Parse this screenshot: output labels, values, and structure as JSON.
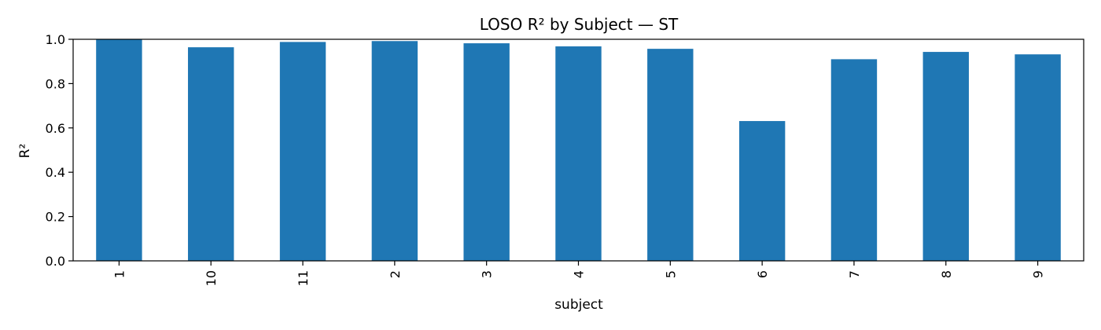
{
  "chart_data": {
    "type": "bar",
    "title": "LOSO R² by Subject — ST",
    "xlabel": "subject",
    "ylabel": "R²",
    "categories": [
      "1",
      "10",
      "11",
      "2",
      "3",
      "4",
      "5",
      "6",
      "7",
      "8",
      "9"
    ],
    "values": [
      0.999,
      0.964,
      0.988,
      0.992,
      0.982,
      0.968,
      0.957,
      0.631,
      0.91,
      0.943,
      0.932
    ],
    "ylim": [
      0,
      1.0
    ],
    "yticks": [
      "0.0",
      "0.2",
      "0.4",
      "0.6",
      "0.8",
      "1.0"
    ],
    "bar_color": "#1f77b4",
    "grid": false,
    "legend": "none"
  }
}
